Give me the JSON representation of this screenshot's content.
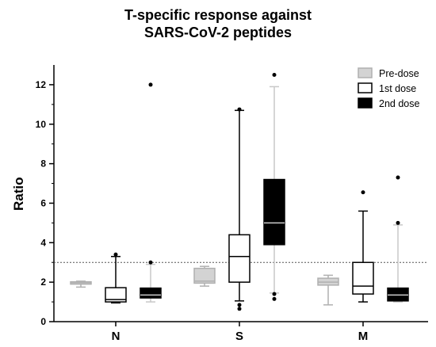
{
  "chart_data": {
    "type": "boxplot",
    "title_line1": "T-specific response against",
    "title_line2": "SARS-CoV-2 peptides",
    "xlabel": "",
    "ylabel": "Ratio",
    "ylim": [
      0,
      13
    ],
    "yticks": [
      0,
      2,
      4,
      6,
      8,
      10,
      12
    ],
    "reference_line": 3,
    "categories": [
      "N",
      "S",
      "M"
    ],
    "legend_position": "top-right",
    "series": [
      {
        "name": "Pre-dose",
        "fill": "#d3d3d3",
        "stroke": "#b0b0b0",
        "median_color": "#b0b0b0",
        "boxes": [
          {
            "min": 1.75,
            "q1": 1.9,
            "median": 1.97,
            "q3": 2.02,
            "max": 2.05,
            "outliers": []
          },
          {
            "min": 1.8,
            "q1": 1.95,
            "median": 2.05,
            "q3": 2.7,
            "max": 2.8,
            "outliers": []
          },
          {
            "min": 0.85,
            "q1": 1.85,
            "median": 2.0,
            "q3": 2.2,
            "max": 2.35,
            "outliers": []
          }
        ]
      },
      {
        "name": "1st dose",
        "fill": "#ffffff",
        "stroke": "#000000",
        "median_color": "#000000",
        "boxes": [
          {
            "min": 0.95,
            "q1": 1.0,
            "median": 1.12,
            "q3": 1.72,
            "max": 3.3,
            "outliers": [
              3.4
            ]
          },
          {
            "min": 1.05,
            "q1": 2.0,
            "median": 3.3,
            "q3": 4.4,
            "max": 10.7,
            "outliers": [
              10.75,
              0.85,
              0.65
            ]
          },
          {
            "min": 1.0,
            "q1": 1.4,
            "median": 1.8,
            "q3": 3.0,
            "max": 5.6,
            "outliers": [
              6.55
            ]
          }
        ]
      },
      {
        "name": "2nd dose",
        "fill": "#000000",
        "stroke": "#000000",
        "median_color": "#cccccc",
        "whisker_color": "#c8c8c8",
        "boxes": [
          {
            "min": 1.0,
            "q1": 1.2,
            "median": 1.35,
            "q3": 1.7,
            "max": 2.9,
            "outliers": [
              12.0,
              3.0
            ]
          },
          {
            "min": 1.45,
            "q1": 3.9,
            "median": 5.0,
            "q3": 7.2,
            "max": 11.9,
            "outliers": [
              12.5,
              1.4,
              1.15
            ]
          },
          {
            "min": 1.0,
            "q1": 1.05,
            "median": 1.35,
            "q3": 1.7,
            "max": 4.9,
            "outliers": [
              7.3,
              5.0
            ]
          }
        ]
      }
    ]
  }
}
